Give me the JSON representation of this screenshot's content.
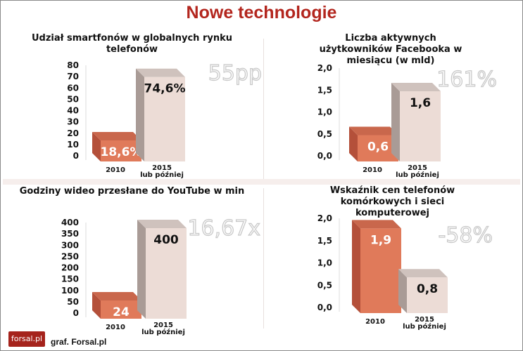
{
  "title": "Nowe technologie",
  "footer": {
    "logo": "forsal.pl",
    "credit": "graf. Forsal.pl"
  },
  "colors": {
    "accent": "#b3261e",
    "bar_2010": "#e07a5a",
    "bar_2015": "#ecdcd6"
  },
  "chart_data": [
    {
      "type": "bar",
      "title": "Udział smartfonów w globalnych rynku telefonów",
      "categories": [
        "2010",
        "2015 lub później"
      ],
      "values": [
        18.6,
        74.6
      ],
      "value_labels": [
        "18,6%",
        "74,6%"
      ],
      "annotation": "55pp",
      "yticks": [
        "0",
        "10",
        "20",
        "30",
        "40",
        "50",
        "60",
        "70",
        "80"
      ],
      "ylim": [
        0,
        80
      ]
    },
    {
      "type": "bar",
      "title": "Liczba aktywnych użytkowników Facebooka w miesiącu (w mld)",
      "categories": [
        "2010",
        "2015 lub później"
      ],
      "values": [
        0.6,
        1.6
      ],
      "value_labels": [
        "0,6",
        "1,6"
      ],
      "annotation": "161%",
      "yticks": [
        "0,0",
        "0,5",
        "1,0",
        "1,5",
        "2,0"
      ],
      "ylim": [
        0,
        2
      ]
    },
    {
      "type": "bar",
      "title": "Godziny wideo przesłane do YouTube w min",
      "categories": [
        "2010",
        "2015 lub później"
      ],
      "values": [
        24,
        400
      ],
      "value_labels": [
        "24",
        "400"
      ],
      "annotation": "16,67x",
      "yticks": [
        "0",
        "50",
        "100",
        "150",
        "200",
        "250",
        "300",
        "350",
        "400"
      ],
      "ylim": [
        0,
        400
      ]
    },
    {
      "type": "bar",
      "title": "Wskaźnik cen telefonów komórkowych i sieci komputerowej",
      "categories": [
        "2010",
        "2015 lub później"
      ],
      "values": [
        1.9,
        0.8
      ],
      "value_labels": [
        "1,9",
        "0,8"
      ],
      "annotation": "-58%",
      "yticks": [
        "0,0",
        "0,5",
        "1,0",
        "1,5",
        "2,0"
      ],
      "ylim": [
        0,
        2
      ]
    }
  ]
}
